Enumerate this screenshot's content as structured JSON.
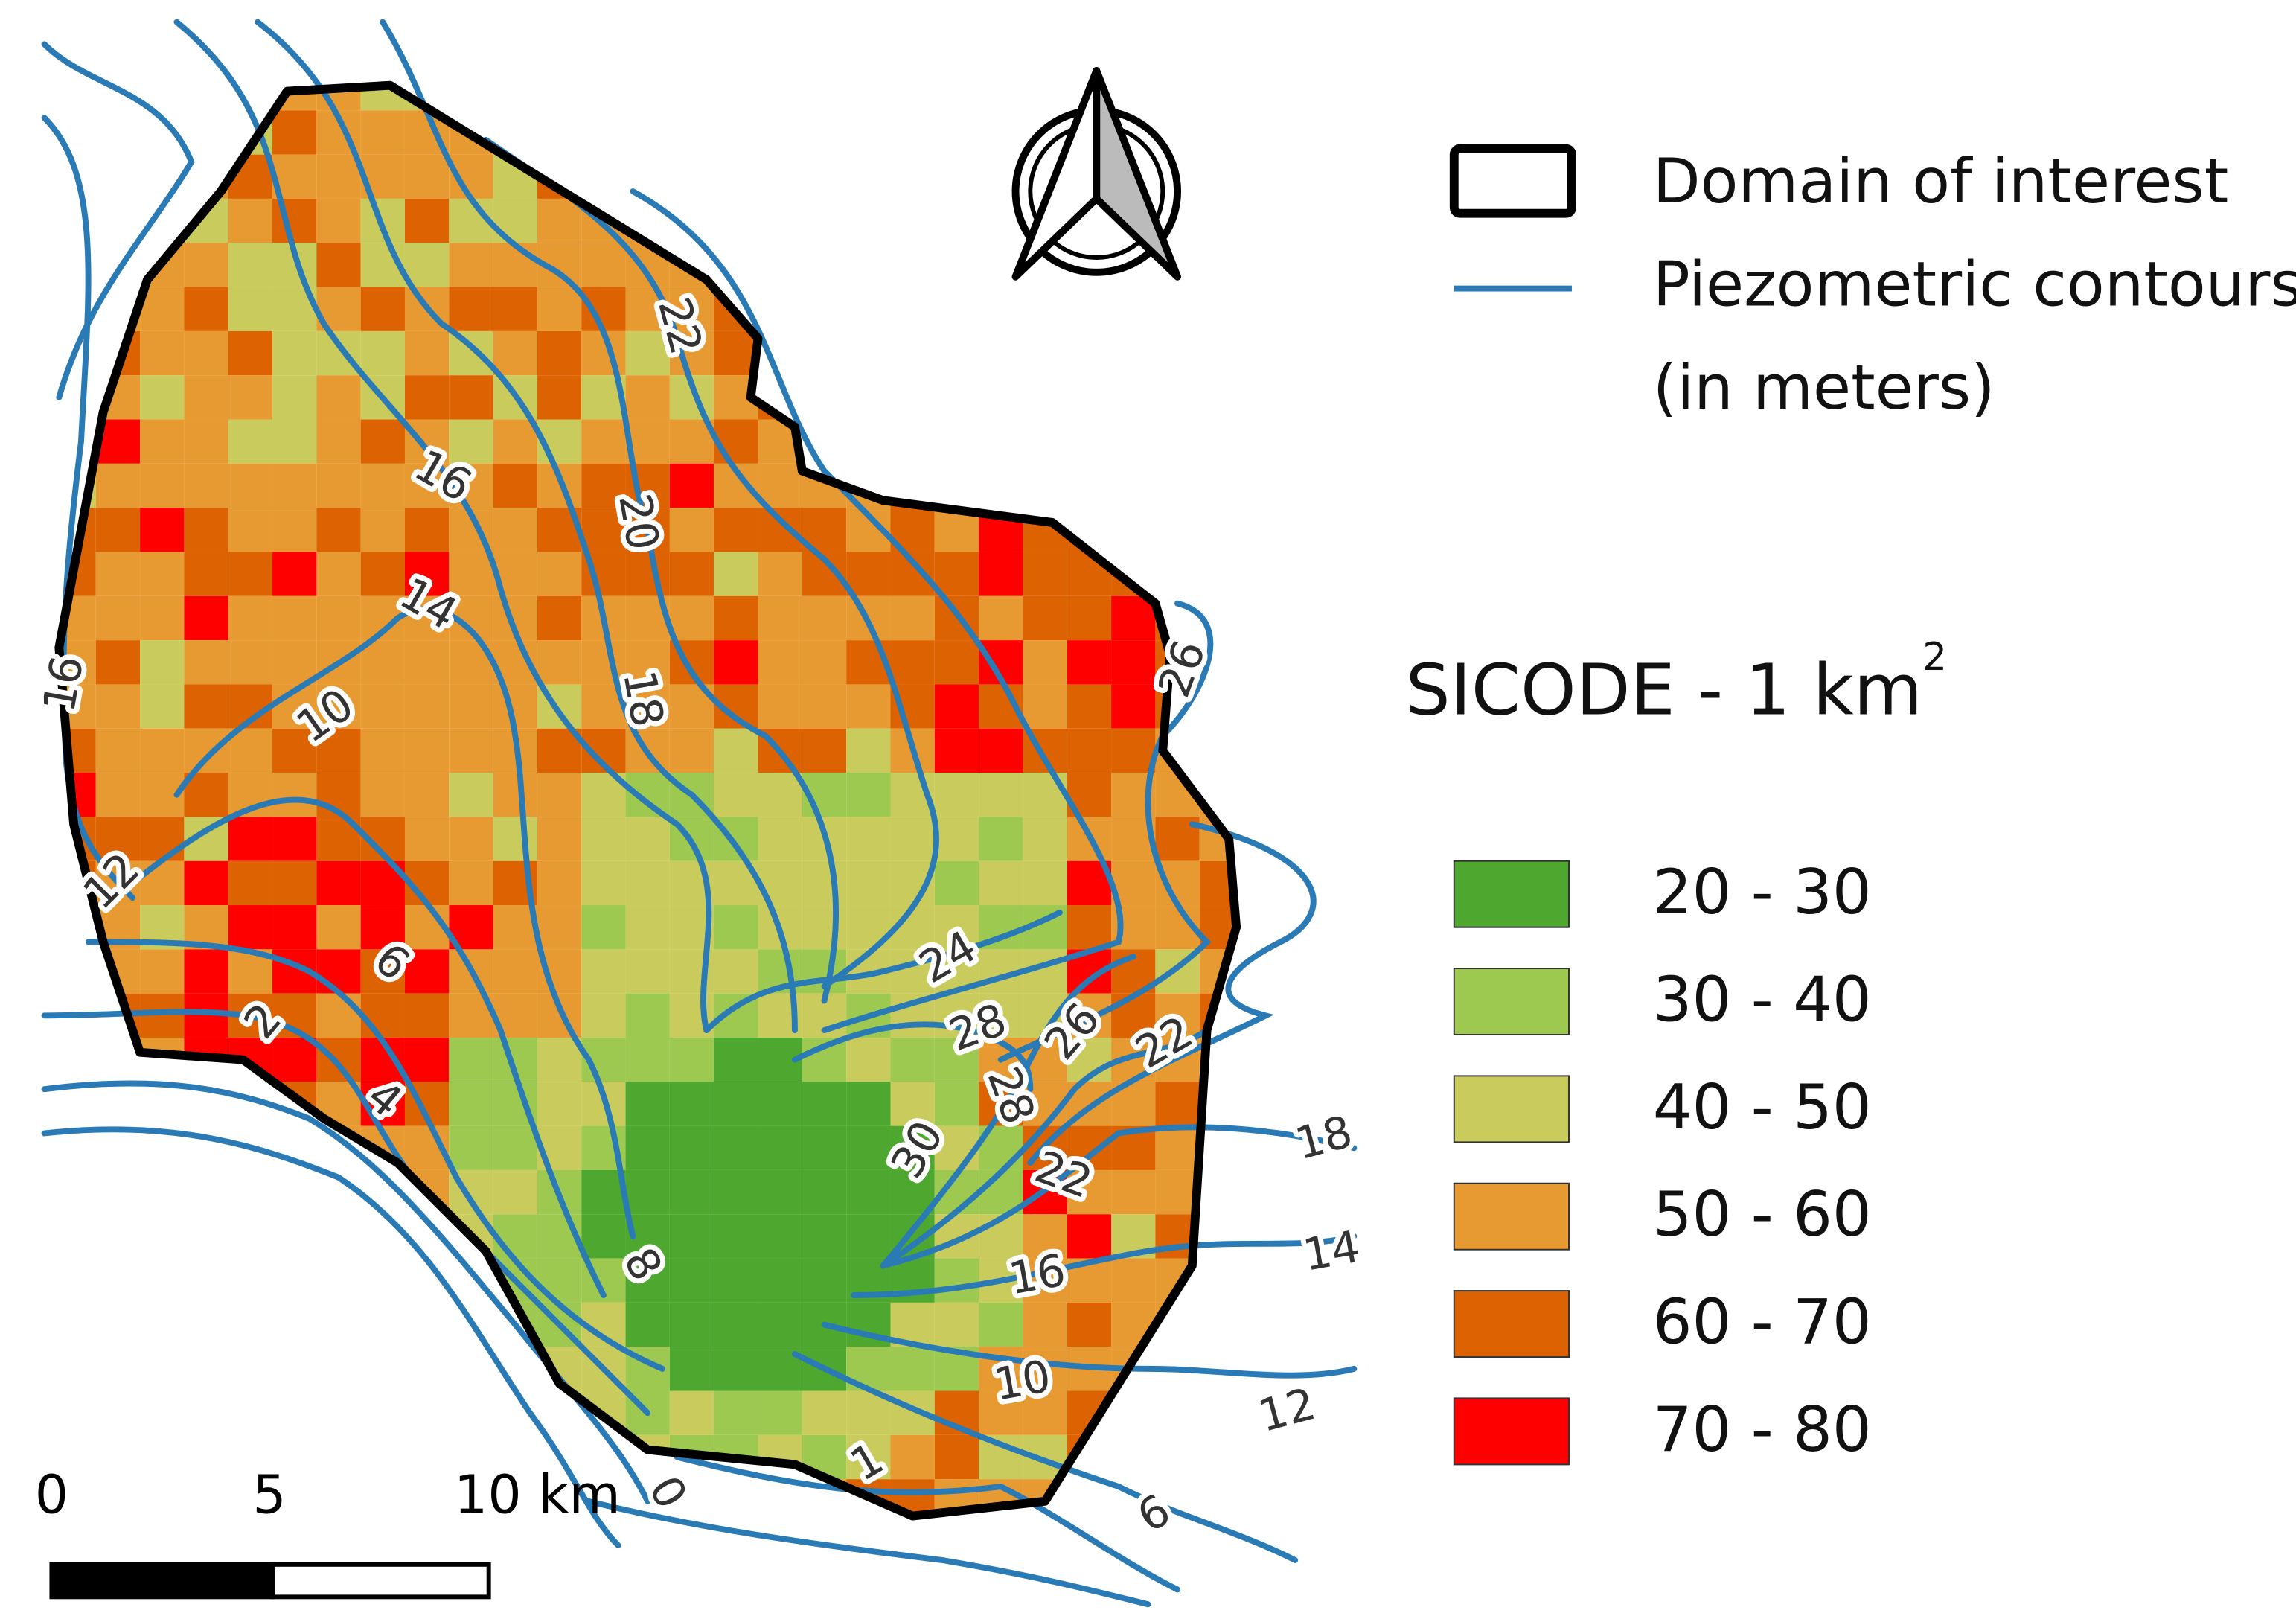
{
  "map_legend": {
    "domain_label": "Domain of interest",
    "contour_label_lines": [
      "Piezometric contours",
      "(in meters)"
    ]
  },
  "raster_legend": {
    "title": "SICODE - 1 km",
    "title_superscript": "2",
    "classes": [
      {
        "label": "20 - 30",
        "color": "#4ea72e"
      },
      {
        "label": "30 - 40",
        "color": "#9dc951"
      },
      {
        "label": "40 - 50",
        "color": "#c9cc5c"
      },
      {
        "label": "50 - 60",
        "color": "#e89a32"
      },
      {
        "label": "60 - 70",
        "color": "#dc6202"
      },
      {
        "label": "70 - 80",
        "color": "#fe0000"
      }
    ]
  },
  "contour_labels": [
    "22",
    "16",
    "20",
    "14",
    "18",
    "16",
    "10",
    "26",
    "12",
    "24",
    "6",
    "28",
    "26",
    "22",
    "2",
    "28",
    "4",
    "30",
    "18",
    "22",
    "8",
    "14",
    "16",
    "10",
    "12",
    "1",
    "0",
    "6"
  ],
  "scale_bar": {
    "labels": [
      "0",
      "5",
      "10 km"
    ]
  }
}
